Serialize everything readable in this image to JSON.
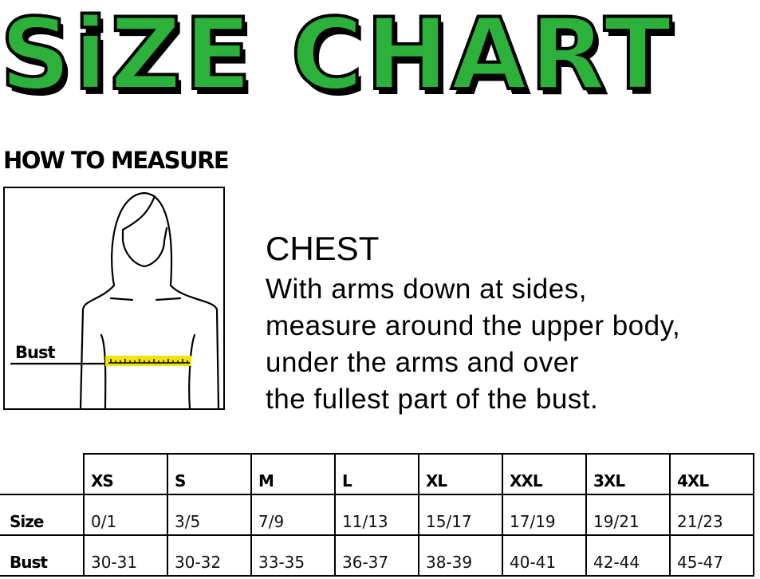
{
  "title": "SiZE CHART",
  "how_to_measure": "HOW TO MEASURE",
  "figure": {
    "label": "Bust",
    "tape_color": "#f2e200"
  },
  "instructions": {
    "heading": "CHEST",
    "lines": [
      "With arms down at sides,",
      "measure around the upper body,",
      "under the arms and over",
      "the fullest part of the bust."
    ]
  },
  "colors": {
    "title_green": "#2cb23a"
  },
  "table": {
    "headers": [
      "XS",
      "S",
      "M",
      "L",
      "XL",
      "XXL",
      "3XL",
      "4XL"
    ],
    "rows": [
      {
        "label": "Size",
        "values": [
          "0/1",
          "3/5",
          "7/9",
          "11/13",
          "15/17",
          "17/19",
          "19/21",
          "21/23"
        ]
      },
      {
        "label": "Bust",
        "values": [
          "30-31",
          "30-32",
          "33-35",
          "36-37",
          "38-39",
          "40-41",
          "42-44",
          "45-47"
        ]
      }
    ]
  }
}
